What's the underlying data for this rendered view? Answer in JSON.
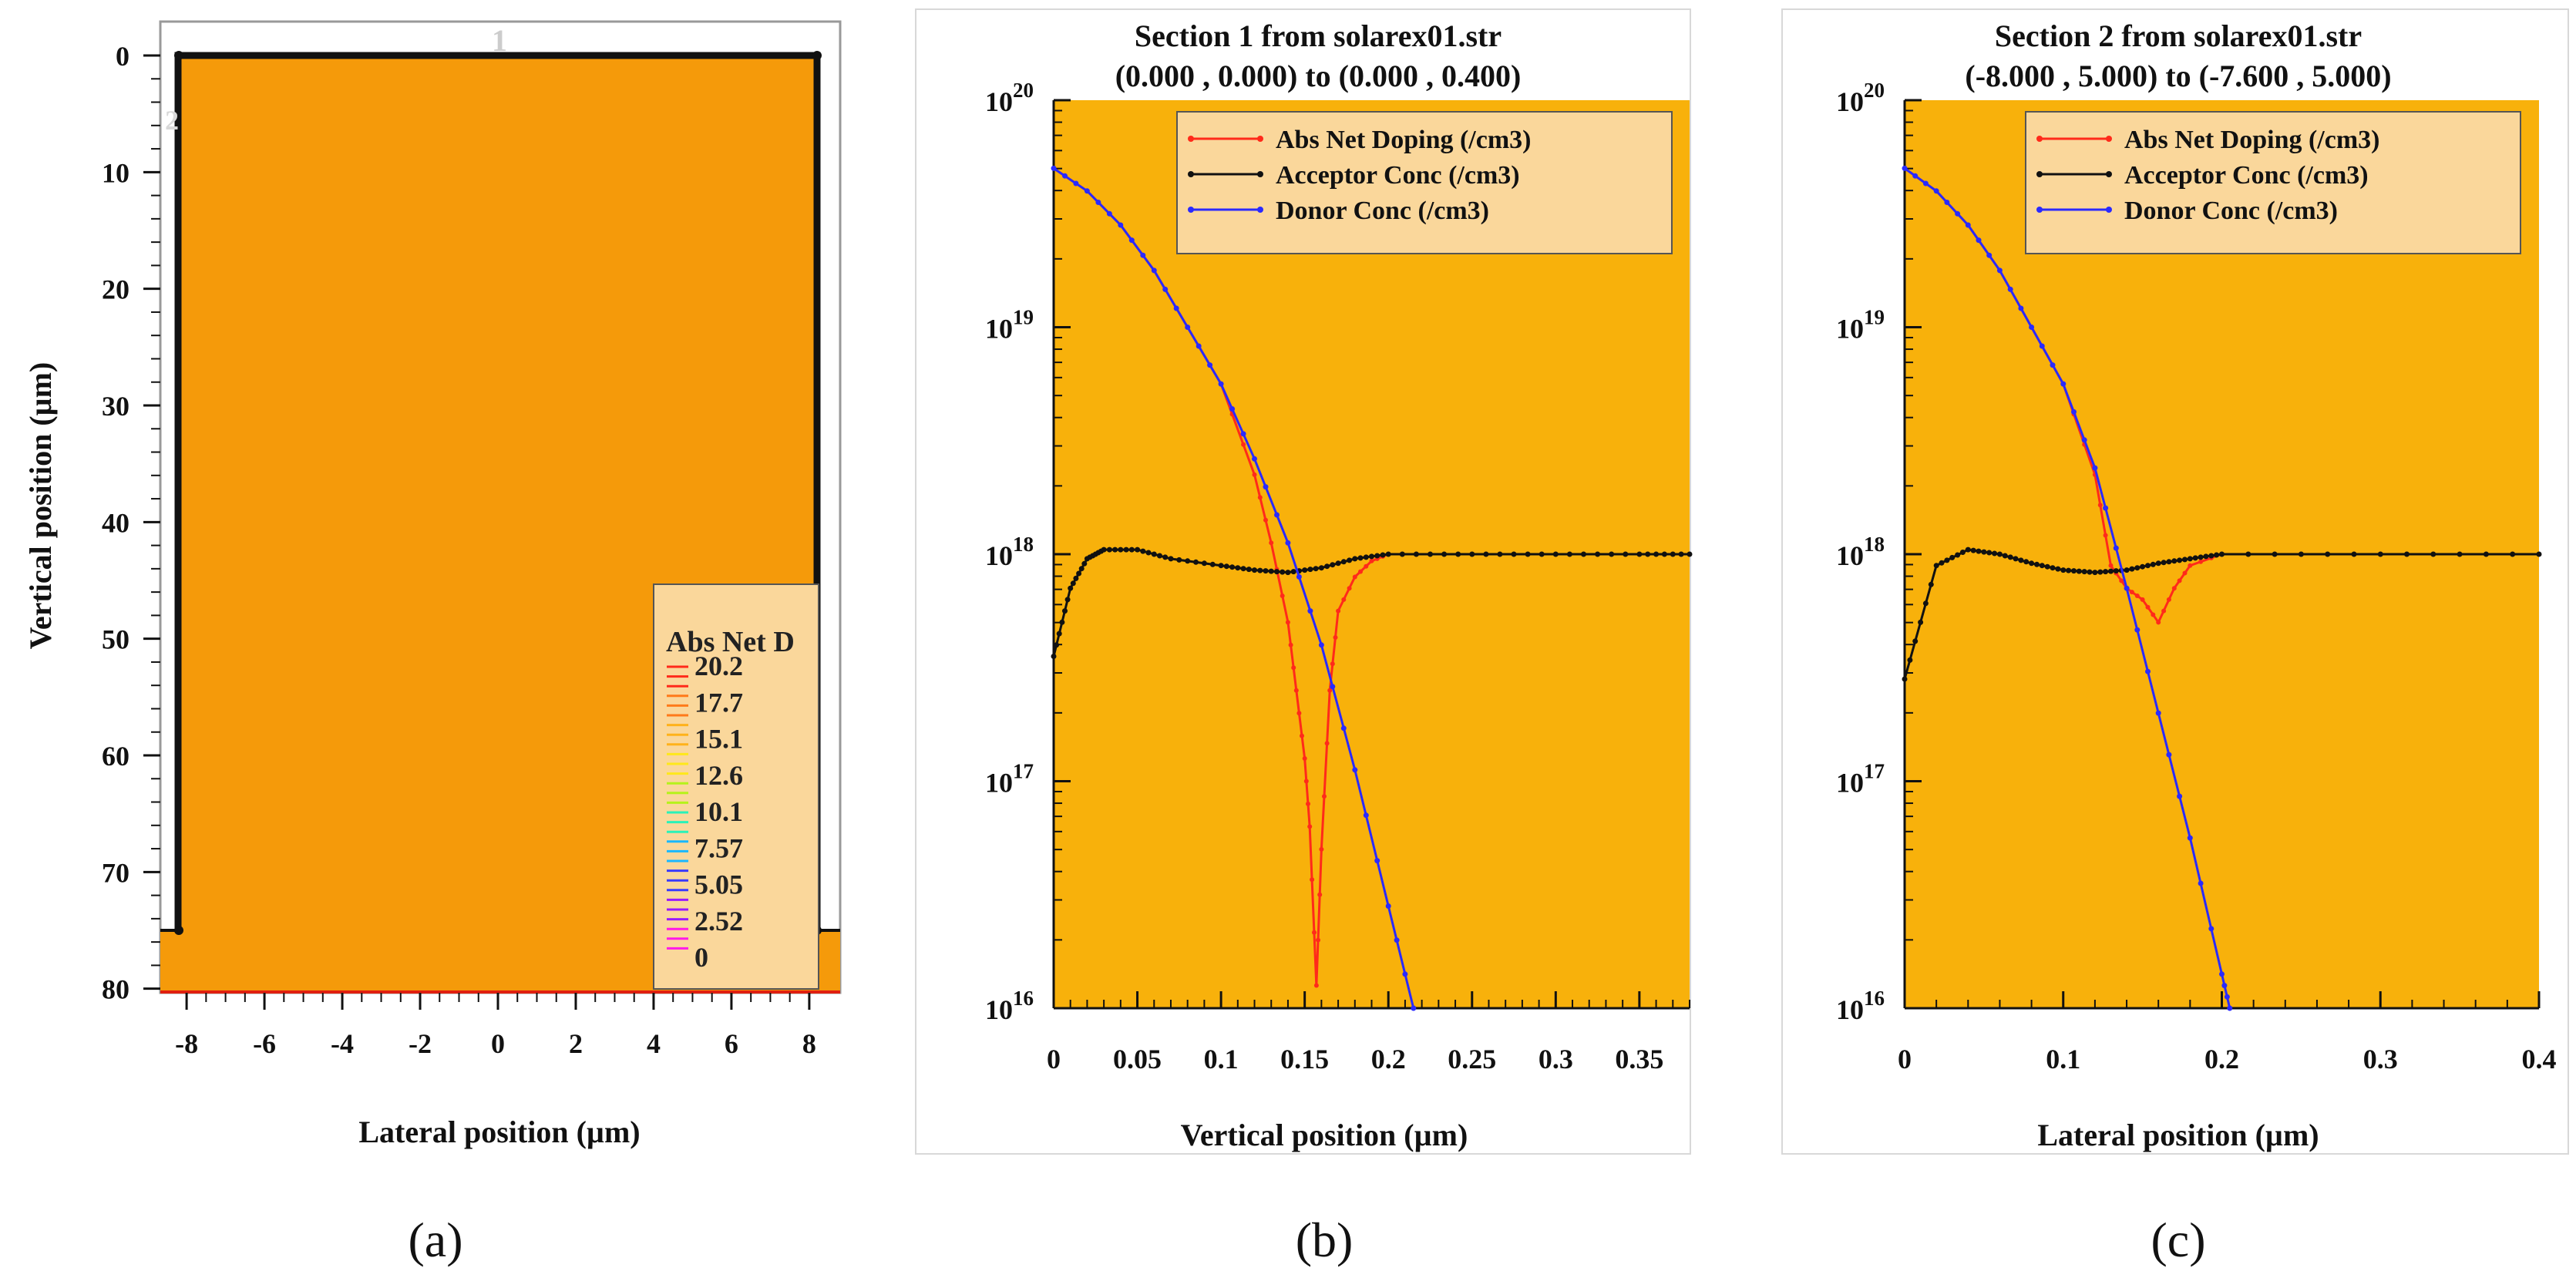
{
  "colors": {
    "panel_bg": "#f8b10b",
    "device_fill": "#f59a0a",
    "legend_bg": "#fad79b",
    "red": "#ff2a1a",
    "black": "#111111",
    "blue": "#2a2aff"
  },
  "chart_data": [
    {
      "id": "a",
      "type": "heatmap",
      "caption": "(a)",
      "xlabel": "Lateral position (µm)",
      "ylabel": "Vertical position (µm)",
      "xlim": [
        -8.5,
        8.5
      ],
      "ylim": [
        80,
        -3
      ],
      "xticks": [
        "-8",
        "-6",
        "-4",
        "-2",
        "0",
        "2",
        "4",
        "6",
        "8"
      ],
      "yticks": [
        "0",
        "10",
        "20",
        "30",
        "40",
        "50",
        "60",
        "70",
        "80"
      ],
      "electrode_labels": [
        "1",
        "2"
      ],
      "device_outline": [
        [
          -8.2,
          75
        ],
        [
          -8.2,
          0
        ],
        [
          8.2,
          0
        ],
        [
          8.2,
          75
        ]
      ],
      "colorbar": {
        "title": "Abs Net D",
        "labels": [
          "20.2",
          "17.7",
          "15.1",
          "12.6",
          "10.1",
          "7.57",
          "5.05",
          "2.52",
          "0"
        ],
        "colors": [
          "#ff2a1a",
          "#ff7a1a",
          "#ffb21a",
          "#ffe81a",
          "#b6f21a",
          "#2af2b8",
          "#1ab8ff",
          "#3a3aff",
          "#9a1aff",
          "#ff1ae8"
        ]
      }
    },
    {
      "id": "b",
      "type": "line",
      "caption": "(b)",
      "title": "Section 1 from solarex01.str",
      "subtitle": "(0.000 , 0.000) to (0.000 , 0.400)",
      "xlabel": "Vertical position (µm)",
      "ylabel": "",
      "xlim": [
        0,
        0.38
      ],
      "xticks": [
        "0",
        "0.05",
        "0.1",
        "0.15",
        "0.2",
        "0.25",
        "0.3",
        "0.35"
      ],
      "ylog": true,
      "ylim_exp": [
        16,
        20
      ],
      "yticks": [
        {
          "base": "10",
          "exp": "20"
        },
        {
          "base": "10",
          "exp": "19"
        },
        {
          "base": "10",
          "exp": "18"
        },
        {
          "base": "10",
          "exp": "17"
        },
        {
          "base": "10",
          "exp": "16"
        }
      ],
      "legend": [
        "Abs Net Doping (/cm3)",
        "Acceptor Conc (/cm3)",
        "Donor Conc (/cm3)"
      ],
      "series": [
        {
          "name": "Abs Net Doping (/cm3)",
          "color": "red",
          "x": [
            0,
            0.02,
            0.04,
            0.06,
            0.08,
            0.1,
            0.12,
            0.13,
            0.14,
            0.145,
            0.15,
            0.153,
            0.157,
            0.16,
            0.165,
            0.17,
            0.18,
            0.19,
            0.2
          ],
          "log10y": [
            19.7,
            19.6,
            19.45,
            19.25,
            19.0,
            18.75,
            18.35,
            18.05,
            17.7,
            17.4,
            17.1,
            16.8,
            16.1,
            16.7,
            17.4,
            17.75,
            17.9,
            17.97,
            18.0
          ]
        },
        {
          "name": "Acceptor Conc (/cm3)",
          "color": "black",
          "x": [
            0,
            0.01,
            0.02,
            0.03,
            0.05,
            0.07,
            0.1,
            0.12,
            0.14,
            0.16,
            0.18,
            0.2,
            0.25,
            0.3,
            0.35,
            0.38
          ],
          "log10y": [
            17.55,
            17.85,
            17.98,
            18.02,
            18.02,
            17.98,
            17.95,
            17.93,
            17.92,
            17.94,
            17.98,
            18.0,
            18.0,
            18.0,
            18.0,
            18.0
          ]
        },
        {
          "name": "Donor Conc (/cm3)",
          "color": "blue",
          "x": [
            0,
            0.02,
            0.04,
            0.06,
            0.08,
            0.1,
            0.12,
            0.14,
            0.16,
            0.18,
            0.2,
            0.215
          ],
          "log10y": [
            19.7,
            19.6,
            19.45,
            19.25,
            19.0,
            18.75,
            18.42,
            18.05,
            17.6,
            17.05,
            16.45,
            16.0
          ]
        }
      ]
    },
    {
      "id": "c",
      "type": "line",
      "caption": "(c)",
      "title": "Section 2 from solarex01.str",
      "subtitle": "(-8.000 , 5.000) to (-7.600 , 5.000)",
      "xlabel": "Lateral position (µm)",
      "ylabel": "",
      "xlim": [
        0,
        0.4
      ],
      "xticks": [
        "0",
        "0.1",
        "0.2",
        "0.3",
        "0.4"
      ],
      "ylog": true,
      "ylim_exp": [
        16,
        20
      ],
      "yticks": [
        {
          "base": "10",
          "exp": "20"
        },
        {
          "base": "10",
          "exp": "19"
        },
        {
          "base": "10",
          "exp": "18"
        },
        {
          "base": "10",
          "exp": "17"
        },
        {
          "base": "10",
          "exp": "16"
        }
      ],
      "legend": [
        "Abs Net Doping (/cm3)",
        "Acceptor Conc (/cm3)",
        "Donor Conc (/cm3)"
      ],
      "series": [
        {
          "name": "Abs Net Doping (/cm3)",
          "color": "red",
          "x": [
            0,
            0.02,
            0.04,
            0.06,
            0.08,
            0.1,
            0.12,
            0.13,
            0.14,
            0.15,
            0.16,
            0.17,
            0.18,
            0.2
          ],
          "log10y": [
            19.7,
            19.6,
            19.45,
            19.25,
            19.0,
            18.75,
            18.35,
            17.95,
            17.85,
            17.8,
            17.7,
            17.85,
            17.95,
            18.0
          ]
        },
        {
          "name": "Acceptor Conc (/cm3)",
          "color": "black",
          "x": [
            0,
            0.02,
            0.04,
            0.06,
            0.08,
            0.1,
            0.12,
            0.14,
            0.16,
            0.18,
            0.2,
            0.3,
            0.4
          ],
          "log10y": [
            17.45,
            17.95,
            18.02,
            18.0,
            17.96,
            17.93,
            17.92,
            17.93,
            17.96,
            17.98,
            18.0,
            18.0,
            18.0
          ]
        },
        {
          "name": "Donor Conc (/cm3)",
          "color": "blue",
          "x": [
            0,
            0.02,
            0.04,
            0.06,
            0.08,
            0.1,
            0.12,
            0.14,
            0.16,
            0.18,
            0.2,
            0.205
          ],
          "log10y": [
            19.7,
            19.6,
            19.45,
            19.25,
            19.0,
            18.75,
            18.38,
            17.85,
            17.3,
            16.75,
            16.15,
            16.0
          ]
        }
      ]
    }
  ]
}
